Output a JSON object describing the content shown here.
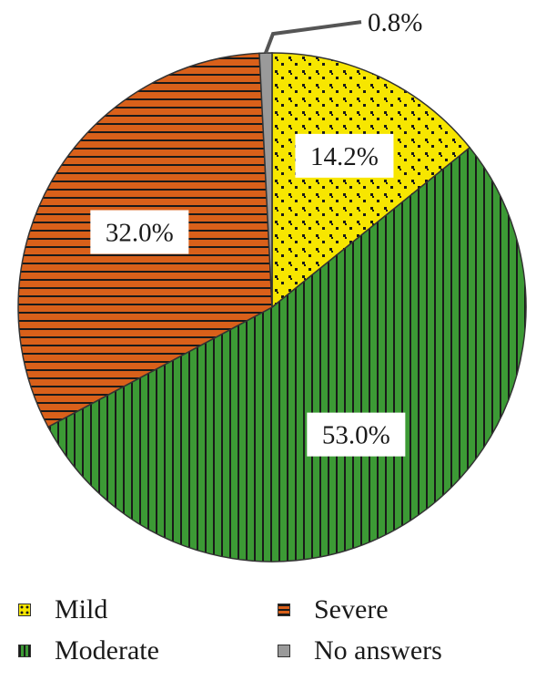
{
  "chart_data": {
    "type": "pie",
    "categories": [
      "Mild",
      "Moderate",
      "Severe",
      "No answers"
    ],
    "values": [
      14.2,
      53.0,
      32.0,
      0.8
    ],
    "labels": [
      "14.2%",
      "53.0%",
      "32.0%",
      "0.8%"
    ],
    "colors": [
      "#f7e600",
      "#3c9a35",
      "#d9601a",
      "#9a9a9a"
    ],
    "patterns": [
      "dots",
      "vertical-lines",
      "horizontal-lines",
      "solid"
    ],
    "legend": {
      "placement": "bottom",
      "items": [
        "Mild",
        "Moderate",
        "Severe",
        "No answers"
      ]
    },
    "title": "",
    "xlabel": "",
    "ylabel": ""
  }
}
